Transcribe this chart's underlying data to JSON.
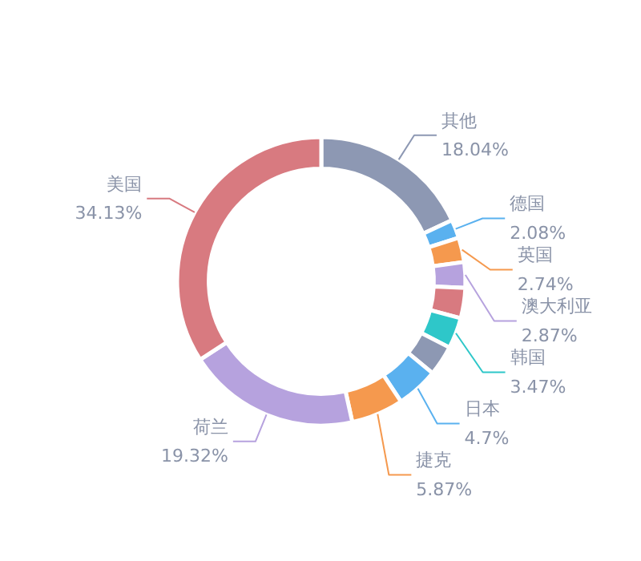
{
  "chart_data": {
    "type": "donut",
    "categories": [
      "其他",
      "德国",
      "英国",
      "澳大利亚",
      null,
      "韩国",
      null,
      "日本",
      "捷克",
      "荷兰",
      "美国"
    ],
    "values": [
      18.04,
      2.08,
      2.74,
      2.87,
      3.39,
      3.47,
      3.39,
      4.7,
      5.87,
      19.32,
      34.13
    ],
    "value_labels": [
      "18.04%",
      "2.08%",
      "2.74%",
      "2.87%",
      null,
      "3.47%",
      null,
      "4.7%",
      "5.87%",
      "19.32%",
      "34.13%"
    ],
    "colors": [
      "#8d98b3",
      "#5ab1ef",
      "#f5994e",
      "#b6a2de",
      "#d87a80",
      "#2ec7c9",
      "#8d98b3",
      "#5ab1ef",
      "#f5994e",
      "#b6a2de",
      "#d87a80"
    ],
    "legend": false
  }
}
